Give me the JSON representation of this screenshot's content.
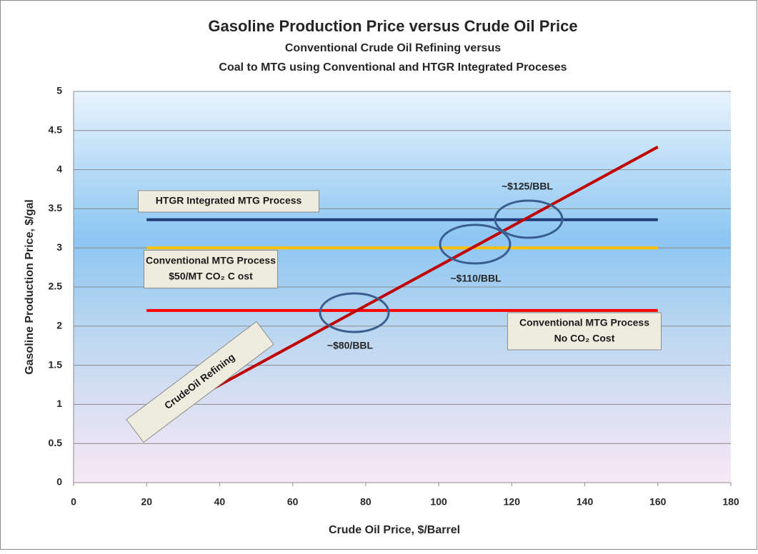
{
  "chart_data": {
    "type": "line",
    "title": "Gasoline Production Price versus Crude Oil Price",
    "subtitle": [
      "Conventional Crude Oil Refining  versus",
      "Coal to MTG using Conventional and HTGR Integrated Proceses"
    ],
    "x_label": "Crude Oil Price, $/Barrel",
    "y_label": "Gasoline Production Price, $/gal",
    "xlim": [
      0,
      180
    ],
    "xticks": [
      0,
      20,
      40,
      60,
      80,
      100,
      120,
      140,
      160,
      180
    ],
    "ylim": [
      0,
      5
    ],
    "yticks": [
      0,
      0.5,
      1,
      1.5,
      2,
      2.5,
      3,
      3.5,
      4,
      4.5,
      5
    ],
    "grid": true,
    "series": [
      {
        "color": "#c00000",
        "x": [
          20,
          160
        ],
        "values": [
          0.74,
          4.29
        ]
      },
      {
        "color": "#1f3d7a",
        "x": [
          20,
          160
        ],
        "values": [
          3.36,
          3.36
        ]
      },
      {
        "color": "#ffc000",
        "x": [
          20,
          160
        ],
        "values": [
          3.0,
          3.0
        ]
      },
      {
        "color": "#ff0000",
        "x": [
          20,
          160
        ],
        "values": [
          2.2,
          2.2
        ]
      }
    ],
    "annotations": [
      {
        "lines": [
          "CrudeOil Refining"
        ]
      },
      {
        "lines": [
          "HTGR Integrated MTG Process"
        ]
      },
      {
        "lines": [
          "Conventional MTG Process",
          "$50/MT CO₂ C ost"
        ]
      },
      {
        "lines": [
          "Conventional  MTG Process",
          "No CO₂ Cost"
        ]
      }
    ],
    "callouts": [
      "~$80/BBL",
      "~$110/BBL",
      "~$125/BBL"
    ]
  }
}
